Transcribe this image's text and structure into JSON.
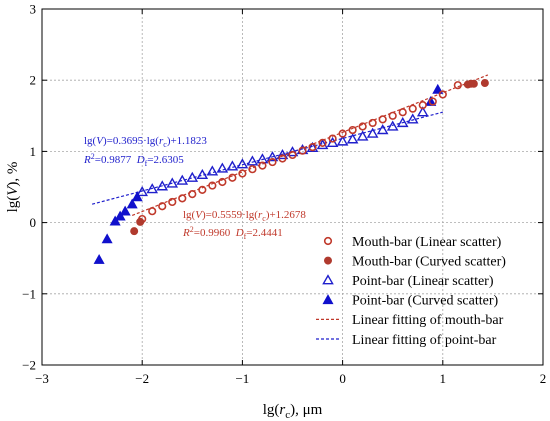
{
  "chart_data": {
    "type": "scatter",
    "title": "",
    "xlabel": {
      "pre": "lg(",
      "italic": "r",
      "sub": "c",
      "post": "), μm"
    },
    "ylabel": {
      "pre": "lg(",
      "italic": "V",
      "post": "), %"
    },
    "xlim": [
      -3,
      2
    ],
    "ylim": [
      -2,
      3
    ],
    "xticks": [
      "−3",
      "−2",
      "−1",
      "0",
      "1",
      "2"
    ],
    "yticks": [
      "−2",
      "−1",
      "0",
      "1",
      "2",
      "3"
    ],
    "grid": true,
    "legend_position": "bottom-right",
    "colors": {
      "mouth": "#c0392b",
      "point": "#1f1fcc",
      "mouth_fill": "#b03a2e",
      "point_fill": "#1010cc"
    },
    "series": [
      {
        "name": "Mouth-bar (Linear scatter)",
        "marker": "circle-open",
        "x": [
          -2.0,
          -1.9,
          -1.8,
          -1.7,
          -1.6,
          -1.5,
          -1.4,
          -1.3,
          -1.2,
          -1.1,
          -1.0,
          -0.9,
          -0.8,
          -0.7,
          -0.6,
          -0.5,
          -0.4,
          -0.3,
          -0.2,
          -0.1,
          0.0,
          0.1,
          0.2,
          0.3,
          0.4,
          0.5,
          0.6,
          0.7,
          0.8,
          0.9,
          1.0,
          1.15
        ],
        "y": [
          0.05,
          0.16,
          0.23,
          0.29,
          0.34,
          0.4,
          0.46,
          0.52,
          0.57,
          0.63,
          0.69,
          0.75,
          0.8,
          0.85,
          0.9,
          0.95,
          1.01,
          1.06,
          1.12,
          1.18,
          1.25,
          1.3,
          1.35,
          1.4,
          1.45,
          1.5,
          1.55,
          1.6,
          1.65,
          1.7,
          1.8,
          1.93
        ]
      },
      {
        "name": "Mouth-bar (Curved scatter)",
        "marker": "circle-filled",
        "x": [
          -2.08,
          -2.02,
          1.25,
          1.28,
          1.31,
          1.42
        ],
        "y": [
          -0.12,
          0.01,
          1.94,
          1.95,
          1.95,
          1.96
        ]
      },
      {
        "name": "Point-bar (Linear scatter)",
        "marker": "triangle-open",
        "x": [
          -2.0,
          -1.9,
          -1.8,
          -1.7,
          -1.6,
          -1.5,
          -1.4,
          -1.3,
          -1.2,
          -1.1,
          -1.0,
          -0.9,
          -0.8,
          -0.7,
          -0.6,
          -0.5,
          -0.4,
          -0.3,
          -0.2,
          -0.1,
          0.0,
          0.1,
          0.2,
          0.3,
          0.4,
          0.5,
          0.6,
          0.7,
          0.8
        ],
        "y": [
          0.43,
          0.47,
          0.51,
          0.55,
          0.59,
          0.63,
          0.67,
          0.72,
          0.76,
          0.79,
          0.82,
          0.86,
          0.89,
          0.92,
          0.95,
          0.99,
          1.02,
          1.05,
          1.09,
          1.12,
          1.14,
          1.17,
          1.21,
          1.25,
          1.3,
          1.35,
          1.4,
          1.45,
          1.55
        ]
      },
      {
        "name": "Point-bar (Curved scatter)",
        "marker": "triangle-filled",
        "x": [
          -2.43,
          -2.35,
          -2.27,
          -2.22,
          -2.17,
          -2.1,
          -2.05,
          0.88,
          0.95
        ],
        "y": [
          -0.52,
          -0.23,
          0.02,
          0.09,
          0.16,
          0.26,
          0.36,
          1.7,
          1.87
        ]
      },
      {
        "name": "Linear fitting of mouth-bar",
        "marker": "dashed-line",
        "slope": 0.5559,
        "intercept": 1.2678,
        "x_range": [
          -2.1,
          1.45
        ]
      },
      {
        "name": "Linear fitting of point-bar",
        "marker": "dashed-line",
        "slope": 0.3695,
        "intercept": 1.1823,
        "x_range": [
          -2.5,
          1.0
        ]
      }
    ],
    "annotations": [
      {
        "id": "point-eq",
        "color": "#1f1fcc",
        "line1": {
          "a": "lg(",
          "b": "V",
          "c": ")=0.3695·lg(",
          "d": "r",
          "sub": "c",
          "e": ")+1.1823"
        },
        "line2": {
          "r": "R",
          "sup": "2",
          "eq": "=0.9877  ",
          "d": "D",
          "dsub": "f",
          "val": "=2.6305"
        }
      },
      {
        "id": "mouth-eq",
        "color": "#c0392b",
        "line1": {
          "a": "lg(",
          "b": "V",
          "c": ")=0.5559·lg(",
          "d": "r",
          "sub": "c",
          "e": ")+1.2678"
        },
        "line2": {
          "r": "R",
          "sup": "2",
          "eq": "=0.9960  ",
          "d": "D",
          "dsub": "f",
          "val": "=2.4441"
        }
      }
    ]
  }
}
